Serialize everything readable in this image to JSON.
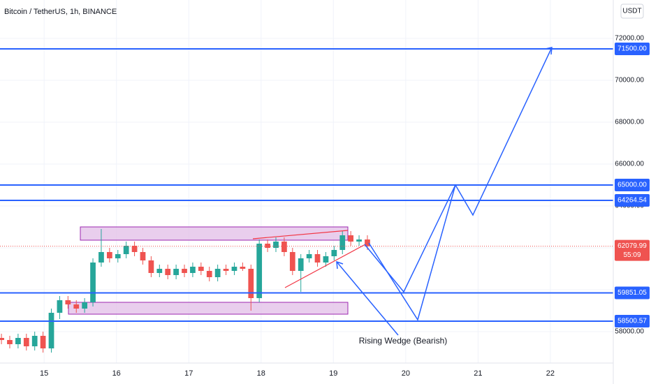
{
  "chart_data": {
    "type": "candlestick",
    "title": "Bitcoin / TetherUS, 1h, BINANCE",
    "currency_button": "USDT",
    "annotation": "Rising Wedge (Bearish)",
    "up_color": "#26a69a",
    "down_color": "#ef5350",
    "line_color": "#2962ff",
    "ylim": [
      56500,
      73833
    ],
    "yticks": [
      {
        "value": 58000,
        "label": "58000.00"
      },
      {
        "value": 60000,
        "label": "60000.00"
      },
      {
        "value": 62000,
        "label": "62000.00"
      },
      {
        "value": 64000,
        "label": "64000.00"
      },
      {
        "value": 66000,
        "label": "66000.00"
      },
      {
        "value": 68000,
        "label": "68000.00"
      },
      {
        "value": 70000,
        "label": "70000.00"
      },
      {
        "value": 72000,
        "label": "72000.00"
      }
    ],
    "xlim": [
      14.39,
      22.87
    ],
    "xticks": [
      15,
      16,
      17,
      18,
      19,
      20,
      21,
      22
    ],
    "price_lines": [
      {
        "value": 71500,
        "label": "71500.00"
      },
      {
        "value": 65000,
        "label": "65000.00"
      },
      {
        "value": 64264.54,
        "label": "64264.54"
      },
      {
        "value": 59851.05,
        "label": "59851.05"
      },
      {
        "value": 58500.57,
        "label": "58500.57"
      }
    ],
    "current_price": 62079.99,
    "countdown": "55:09",
    "x": [
      14.41,
      14.525,
      14.64,
      14.755,
      14.87,
      14.985,
      15.1,
      15.215,
      15.33,
      15.445,
      15.56,
      15.675,
      15.79,
      15.905,
      16.02,
      16.135,
      16.25,
      16.365,
      16.48,
      16.595,
      16.71,
      16.825,
      16.94,
      17.055,
      17.17,
      17.285,
      17.4,
      17.515,
      17.63,
      17.745,
      17.86,
      17.975,
      18.09,
      18.205,
      18.32,
      18.435,
      18.55,
      18.665,
      18.78,
      18.895,
      19.01,
      19.125,
      19.24,
      19.355,
      19.47
    ],
    "open": [
      57700,
      57600,
      57400,
      57700,
      57300,
      57800,
      57200,
      58900,
      59500,
      59300,
      59100,
      59400,
      61300,
      61800,
      61500,
      61700,
      62100,
      61800,
      61400,
      60800,
      61000,
      60700,
      61000,
      60800,
      61100,
      60900,
      60600,
      61000,
      60900,
      61100,
      61000,
      59600,
      62200,
      62000,
      62300,
      61800,
      60900,
      61500,
      61700,
      61300,
      61600,
      61900,
      62600,
      62300,
      62400
    ],
    "high": [
      57900,
      57800,
      57900,
      57900,
      58000,
      58000,
      59100,
      59700,
      59700,
      59500,
      59600,
      61500,
      62900,
      62000,
      61900,
      62300,
      62300,
      62000,
      61600,
      61200,
      61200,
      61200,
      61200,
      61300,
      61300,
      61100,
      61200,
      61200,
      61300,
      61300,
      61200,
      62400,
      62400,
      62500,
      62500,
      62000,
      61700,
      61900,
      61900,
      61800,
      62100,
      62800,
      62800,
      62600,
      62600
    ],
    "low": [
      57400,
      57200,
      57200,
      57100,
      57100,
      57000,
      57000,
      58600,
      59100,
      58900,
      58900,
      59200,
      61100,
      61300,
      61300,
      61500,
      61600,
      61200,
      60600,
      60600,
      60500,
      60500,
      60600,
      60600,
      60700,
      60400,
      60400,
      60700,
      60700,
      60900,
      59000,
      59400,
      61800,
      61800,
      61600,
      60700,
      59900,
      61300,
      61100,
      61100,
      61400,
      61700,
      62100,
      62100,
      61900
    ],
    "close": [
      57600,
      57400,
      57700,
      57300,
      57800,
      57200,
      58900,
      59500,
      59300,
      59100,
      59400,
      61300,
      61800,
      61500,
      61700,
      62100,
      61800,
      61400,
      60800,
      61000,
      60700,
      61000,
      60800,
      61100,
      60900,
      60600,
      61000,
      60900,
      61100,
      61000,
      59600,
      62200,
      62000,
      62300,
      61800,
      60900,
      61500,
      61700,
      61300,
      61600,
      61900,
      62600,
      62300,
      62400,
      62080
    ]
  }
}
